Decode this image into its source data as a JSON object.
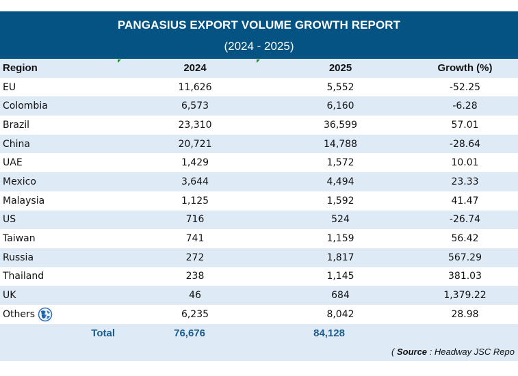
{
  "report": {
    "title": "PANGASIUS EXPORT VOLUME GROWTH REPORT",
    "subtitle": "(2024 - 2025)"
  },
  "columns": [
    "Region",
    "2024",
    "2025",
    "Growth (%)"
  ],
  "rows": [
    {
      "region": "EU",
      "y2024": "11,626",
      "y2025": "5,552",
      "growth": "-52.25"
    },
    {
      "region": "Colombia",
      "y2024": "6,573",
      "y2025": "6,160",
      "growth": "-6.28"
    },
    {
      "region": "Brazil",
      "y2024": "23,310",
      "y2025": "36,599",
      "growth": "57.01"
    },
    {
      "region": "China",
      "y2024": "20,721",
      "y2025": "14,788",
      "growth": "-28.64"
    },
    {
      "region": "UAE",
      "y2024": "1,429",
      "y2025": "1,572",
      "growth": "10.01"
    },
    {
      "region": "Mexico",
      "y2024": "3,644",
      "y2025": "4,494",
      "growth": "23.33"
    },
    {
      "region": "Malaysia",
      "y2024": "1,125",
      "y2025": "1,592",
      "growth": "41.47"
    },
    {
      "region": "US",
      "y2024": "716",
      "y2025": "524",
      "growth": "-26.74"
    },
    {
      "region": "Taiwan",
      "y2024": "741",
      "y2025": "1,159",
      "growth": "56.42"
    },
    {
      "region": "Russia",
      "y2024": "272",
      "y2025": "1,817",
      "growth": "567.29"
    },
    {
      "region": "Thailand",
      "y2024": "238",
      "y2025": "1,145",
      "growth": "381.03"
    },
    {
      "region": "UK",
      "y2024": "46",
      "y2025": "684",
      "growth": "1,379.22"
    },
    {
      "region": "Others",
      "y2024": "6,235",
      "y2025": "8,042",
      "growth": "28.98",
      "icon": "globe-icon"
    }
  ],
  "total": {
    "label": "Total",
    "y2024": "76,676",
    "y2025": "84,128"
  },
  "source": {
    "open": "( ",
    "label": "Source",
    "text": " : Headway JSC Repo"
  },
  "colors": {
    "header_bg": "#045383",
    "row_alt": "#deebf7",
    "total_text": "#1b5c8e"
  }
}
